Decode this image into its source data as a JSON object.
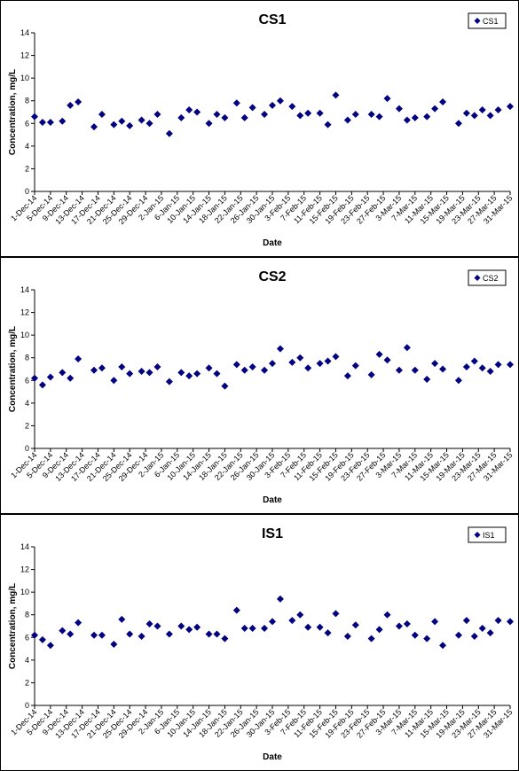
{
  "chart_data": [
    {
      "type": "scatter",
      "title": "CS1",
      "xlabel": "Date",
      "ylabel": "Concentration, mg/L",
      "ylim": [
        0,
        14
      ],
      "yticks": [
        0,
        2,
        4,
        6,
        8,
        10,
        12,
        14
      ],
      "xlim": [
        "2014-12-01",
        "2015-03-31"
      ],
      "x_tick_labels": [
        "1-Dec-14",
        "5-Dec-14",
        "9-Dec-14",
        "13-Dec-14",
        "17-Dec-14",
        "21-Dec-14",
        "25-Dec-14",
        "29-Dec-14",
        "2-Jan-15",
        "6-Jan-15",
        "10-Jan-15",
        "14-Jan-15",
        "18-Jan-15",
        "22-Jan-15",
        "26-Jan-15",
        "30-Jan-15",
        "3-Feb-15",
        "7-Feb-15",
        "11-Feb-15",
        "15-Feb-15",
        "19-Feb-15",
        "23-Feb-15",
        "27-Feb-15",
        "3-Mar-15",
        "7-Mar-15",
        "11-Mar-15",
        "15-Mar-15",
        "19-Mar-15",
        "23-Mar-15",
        "27-Mar-15",
        "31-Mar-15"
      ],
      "legend": "top-right",
      "grid": false,
      "series": [
        {
          "name": "CS1",
          "color": "#000080",
          "marker": "diamond",
          "x": [
            "2014-12-01",
            "2014-12-03",
            "2014-12-05",
            "2014-12-08",
            "2014-12-10",
            "2014-12-12",
            "2014-12-16",
            "2014-12-18",
            "2014-12-21",
            "2014-12-23",
            "2014-12-25",
            "2014-12-28",
            "2014-12-30",
            "2015-01-01",
            "2015-01-04",
            "2015-01-07",
            "2015-01-09",
            "2015-01-11",
            "2015-01-14",
            "2015-01-16",
            "2015-01-18",
            "2015-01-21",
            "2015-01-23",
            "2015-01-25",
            "2015-01-28",
            "2015-01-30",
            "2015-02-01",
            "2015-02-04",
            "2015-02-06",
            "2015-02-08",
            "2015-02-11",
            "2015-02-13",
            "2015-02-15",
            "2015-02-18",
            "2015-02-20",
            "2015-02-24",
            "2015-02-26",
            "2015-02-28",
            "2015-03-03",
            "2015-03-05",
            "2015-03-07",
            "2015-03-10",
            "2015-03-12",
            "2015-03-14",
            "2015-03-18",
            "2015-03-20",
            "2015-03-22",
            "2015-03-24",
            "2015-03-26",
            "2015-03-28",
            "2015-03-31"
          ],
          "y": [
            6.6,
            6.1,
            6.1,
            6.2,
            7.6,
            7.9,
            5.7,
            6.8,
            5.9,
            6.2,
            5.8,
            6.3,
            6.0,
            6.8,
            5.1,
            6.5,
            7.2,
            7.0,
            6.0,
            6.8,
            6.5,
            7.8,
            6.5,
            7.4,
            6.8,
            7.6,
            8.0,
            7.5,
            6.7,
            6.9,
            6.9,
            5.9,
            8.5,
            6.3,
            6.8,
            6.8,
            6.6,
            8.2,
            7.3,
            6.3,
            6.5,
            6.6,
            7.3,
            7.9,
            6.0,
            6.9,
            6.7,
            7.2,
            6.7,
            7.2,
            7.5
          ]
        }
      ]
    },
    {
      "type": "scatter",
      "title": "CS2",
      "xlabel": "Date",
      "ylabel": "Concentration, mg/L",
      "ylim": [
        0,
        14
      ],
      "yticks": [
        0,
        2,
        4,
        6,
        8,
        10,
        12,
        14
      ],
      "xlim": [
        "2014-12-01",
        "2015-03-31"
      ],
      "x_tick_labels": [
        "1-Dec-14",
        "5-Dec-14",
        "9-Dec-14",
        "13-Dec-14",
        "17-Dec-14",
        "21-Dec-14",
        "25-Dec-14",
        "29-Dec-14",
        "2-Jan-15",
        "6-Jan-15",
        "10-Jan-15",
        "14-Jan-15",
        "18-Jan-15",
        "22-Jan-15",
        "26-Jan-15",
        "30-Jan-15",
        "3-Feb-15",
        "7-Feb-15",
        "11-Feb-15",
        "15-Feb-15",
        "19-Feb-15",
        "23-Feb-15",
        "27-Feb-15",
        "3-Mar-15",
        "7-Mar-15",
        "11-Mar-15",
        "15-Mar-15",
        "19-Mar-15",
        "23-Mar-15",
        "27-Mar-15",
        "31-Mar-15"
      ],
      "legend": "top-right",
      "grid": false,
      "series": [
        {
          "name": "CS2",
          "color": "#000080",
          "marker": "diamond",
          "x": [
            "2014-12-01",
            "2014-12-03",
            "2014-12-05",
            "2014-12-08",
            "2014-12-10",
            "2014-12-12",
            "2014-12-16",
            "2014-12-18",
            "2014-12-21",
            "2014-12-23",
            "2014-12-25",
            "2014-12-28",
            "2014-12-30",
            "2015-01-01",
            "2015-01-04",
            "2015-01-07",
            "2015-01-09",
            "2015-01-11",
            "2015-01-14",
            "2015-01-16",
            "2015-01-18",
            "2015-01-21",
            "2015-01-23",
            "2015-01-25",
            "2015-01-28",
            "2015-01-30",
            "2015-02-01",
            "2015-02-04",
            "2015-02-06",
            "2015-02-08",
            "2015-02-11",
            "2015-02-13",
            "2015-02-15",
            "2015-02-18",
            "2015-02-20",
            "2015-02-24",
            "2015-02-26",
            "2015-02-28",
            "2015-03-03",
            "2015-03-05",
            "2015-03-07",
            "2015-03-10",
            "2015-03-12",
            "2015-03-14",
            "2015-03-18",
            "2015-03-20",
            "2015-03-22",
            "2015-03-24",
            "2015-03-26",
            "2015-03-28",
            "2015-03-31"
          ],
          "y": [
            6.2,
            5.6,
            6.3,
            6.7,
            6.2,
            7.9,
            6.9,
            7.1,
            6.0,
            7.2,
            6.6,
            6.8,
            6.7,
            7.2,
            5.9,
            6.7,
            6.4,
            6.6,
            7.1,
            6.6,
            5.5,
            7.4,
            6.9,
            7.2,
            6.9,
            7.5,
            8.8,
            7.6,
            8.0,
            7.1,
            7.5,
            7.7,
            8.1,
            6.4,
            7.3,
            6.5,
            8.3,
            7.8,
            6.9,
            8.9,
            6.9,
            6.1,
            7.5,
            7.0,
            6.0,
            7.2,
            7.7,
            7.1,
            6.8,
            7.4,
            7.4
          ]
        }
      ]
    },
    {
      "type": "scatter",
      "title": "IS1",
      "xlabel": "Date",
      "ylabel": "Concentration, mg/L",
      "ylim": [
        0,
        14
      ],
      "yticks": [
        0,
        2,
        4,
        6,
        8,
        10,
        12,
        14
      ],
      "xlim": [
        "2014-12-01",
        "2015-03-31"
      ],
      "x_tick_labels": [
        "1-Dec-14",
        "5-Dec-14",
        "9-Dec-14",
        "13-Dec-14",
        "17-Dec-14",
        "21-Dec-14",
        "25-Dec-14",
        "29-Dec-14",
        "2-Jan-15",
        "6-Jan-15",
        "10-Jan-15",
        "14-Jan-15",
        "18-Jan-15",
        "22-Jan-15",
        "26-Jan-15",
        "30-Jan-15",
        "3-Feb-15",
        "7-Feb-15",
        "11-Feb-15",
        "15-Feb-15",
        "19-Feb-15",
        "23-Feb-15",
        "27-Feb-15",
        "3-Mar-15",
        "7-Mar-15",
        "11-Mar-15",
        "15-Mar-15",
        "19-Mar-15",
        "23-Mar-15",
        "27-Mar-15",
        "31-Mar-15"
      ],
      "legend": "top-right",
      "grid": false,
      "series": [
        {
          "name": "IS1",
          "color": "#000080",
          "marker": "diamond",
          "x": [
            "2014-12-01",
            "2014-12-03",
            "2014-12-05",
            "2014-12-08",
            "2014-12-10",
            "2014-12-12",
            "2014-12-16",
            "2014-12-18",
            "2014-12-21",
            "2014-12-23",
            "2014-12-25",
            "2014-12-28",
            "2014-12-30",
            "2015-01-01",
            "2015-01-04",
            "2015-01-07",
            "2015-01-09",
            "2015-01-11",
            "2015-01-14",
            "2015-01-16",
            "2015-01-18",
            "2015-01-21",
            "2015-01-23",
            "2015-01-25",
            "2015-01-28",
            "2015-01-30",
            "2015-02-01",
            "2015-02-04",
            "2015-02-06",
            "2015-02-08",
            "2015-02-11",
            "2015-02-13",
            "2015-02-15",
            "2015-02-18",
            "2015-02-20",
            "2015-02-24",
            "2015-02-26",
            "2015-02-28",
            "2015-03-03",
            "2015-03-05",
            "2015-03-07",
            "2015-03-10",
            "2015-03-12",
            "2015-03-14",
            "2015-03-18",
            "2015-03-20",
            "2015-03-22",
            "2015-03-24",
            "2015-03-26",
            "2015-03-28",
            "2015-03-31"
          ],
          "y": [
            6.2,
            5.8,
            5.3,
            6.6,
            6.3,
            7.3,
            6.2,
            6.2,
            5.4,
            7.6,
            6.3,
            6.1,
            7.2,
            7.0,
            6.3,
            7.0,
            6.7,
            6.9,
            6.3,
            6.3,
            5.9,
            8.4,
            6.8,
            6.8,
            6.8,
            7.4,
            9.4,
            7.5,
            8.0,
            6.9,
            6.9,
            6.4,
            8.1,
            6.1,
            7.1,
            5.9,
            6.7,
            8.0,
            7.0,
            7.2,
            6.2,
            5.9,
            7.4,
            5.3,
            6.2,
            7.5,
            6.1,
            6.8,
            6.4,
            7.5,
            7.4
          ]
        }
      ]
    }
  ]
}
